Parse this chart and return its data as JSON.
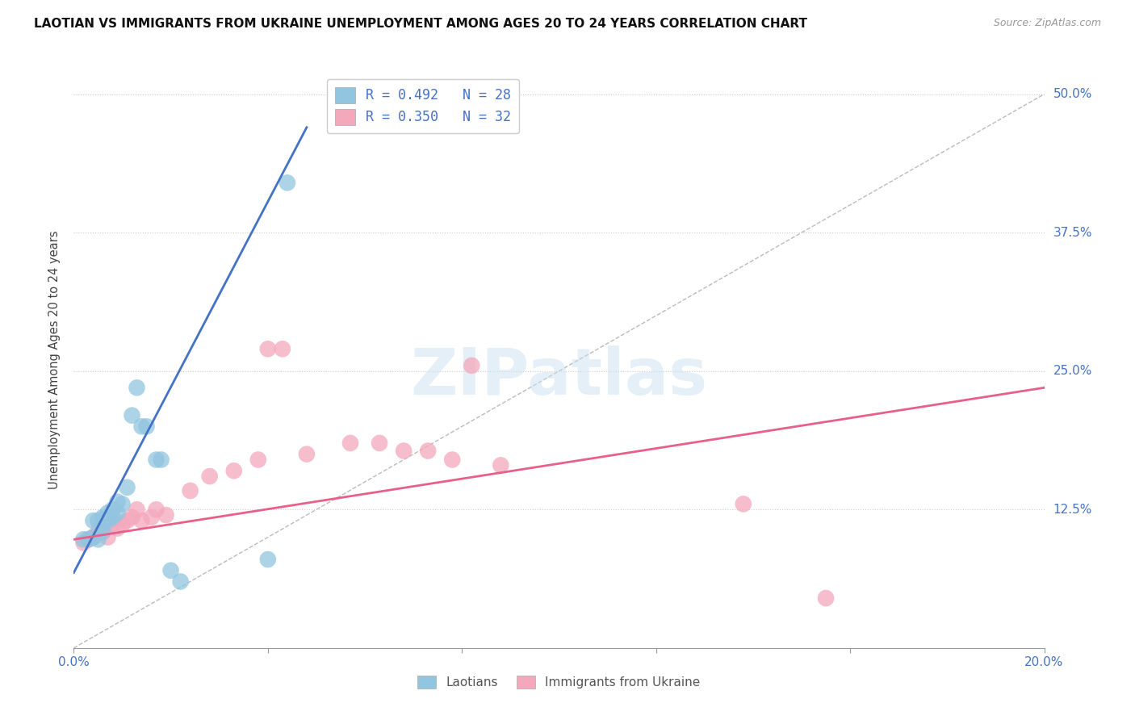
{
  "title": "LAOTIAN VS IMMIGRANTS FROM UKRAINE UNEMPLOYMENT AMONG AGES 20 TO 24 YEARS CORRELATION CHART",
  "source": "Source: ZipAtlas.com",
  "ylabel": "Unemployment Among Ages 20 to 24 years",
  "xlim": [
    0.0,
    0.2
  ],
  "ylim": [
    0.0,
    0.52
  ],
  "yticks": [
    0.0,
    0.125,
    0.25,
    0.375,
    0.5
  ],
  "ytick_labels": [
    "",
    "12.5%",
    "25.0%",
    "37.5%",
    "50.0%"
  ],
  "xticks": [
    0.0,
    0.04,
    0.08,
    0.12,
    0.16,
    0.2
  ],
  "xtick_labels": [
    "0.0%",
    "",
    "",
    "",
    "",
    "20.0%"
  ],
  "legend_r1": "R = 0.492   N = 28",
  "legend_r2": "R = 0.350   N = 32",
  "legend_label1": "Laotians",
  "legend_label2": "Immigrants from Ukraine",
  "blue_color": "#92c5e0",
  "pink_color": "#f4a8bc",
  "blue_line_color": "#4472c4",
  "pink_line_color": "#e8608a",
  "diag_color": "#cccccc",
  "watermark": "ZIPatlas",
  "laotian_x": [
    0.002,
    0.003,
    0.004,
    0.004,
    0.005,
    0.005,
    0.006,
    0.006,
    0.006,
    0.007,
    0.007,
    0.007,
    0.008,
    0.008,
    0.009,
    0.009,
    0.01,
    0.011,
    0.012,
    0.013,
    0.014,
    0.015,
    0.017,
    0.018,
    0.02,
    0.022,
    0.04,
    0.044
  ],
  "laotian_y": [
    0.098,
    0.098,
    0.1,
    0.115,
    0.098,
    0.115,
    0.105,
    0.112,
    0.118,
    0.115,
    0.118,
    0.122,
    0.118,
    0.125,
    0.122,
    0.132,
    0.13,
    0.145,
    0.21,
    0.235,
    0.2,
    0.2,
    0.17,
    0.17,
    0.07,
    0.06,
    0.08,
    0.42
  ],
  "ukraine_x": [
    0.002,
    0.003,
    0.004,
    0.005,
    0.006,
    0.007,
    0.008,
    0.009,
    0.01,
    0.011,
    0.012,
    0.013,
    0.014,
    0.016,
    0.017,
    0.019,
    0.024,
    0.028,
    0.033,
    0.038,
    0.04,
    0.043,
    0.048,
    0.057,
    0.063,
    0.068,
    0.073,
    0.078,
    0.082,
    0.088,
    0.138,
    0.155
  ],
  "ukraine_y": [
    0.095,
    0.098,
    0.1,
    0.105,
    0.105,
    0.1,
    0.112,
    0.108,
    0.112,
    0.115,
    0.118,
    0.125,
    0.115,
    0.118,
    0.125,
    0.12,
    0.142,
    0.155,
    0.16,
    0.17,
    0.27,
    0.27,
    0.175,
    0.185,
    0.185,
    0.178,
    0.178,
    0.17,
    0.255,
    0.165,
    0.13,
    0.045
  ],
  "blue_line_x": [
    0.0,
    0.048
  ],
  "blue_line_y": [
    0.068,
    0.47
  ],
  "pink_line_x": [
    0.0,
    0.2
  ],
  "pink_line_y": [
    0.098,
    0.235
  ]
}
